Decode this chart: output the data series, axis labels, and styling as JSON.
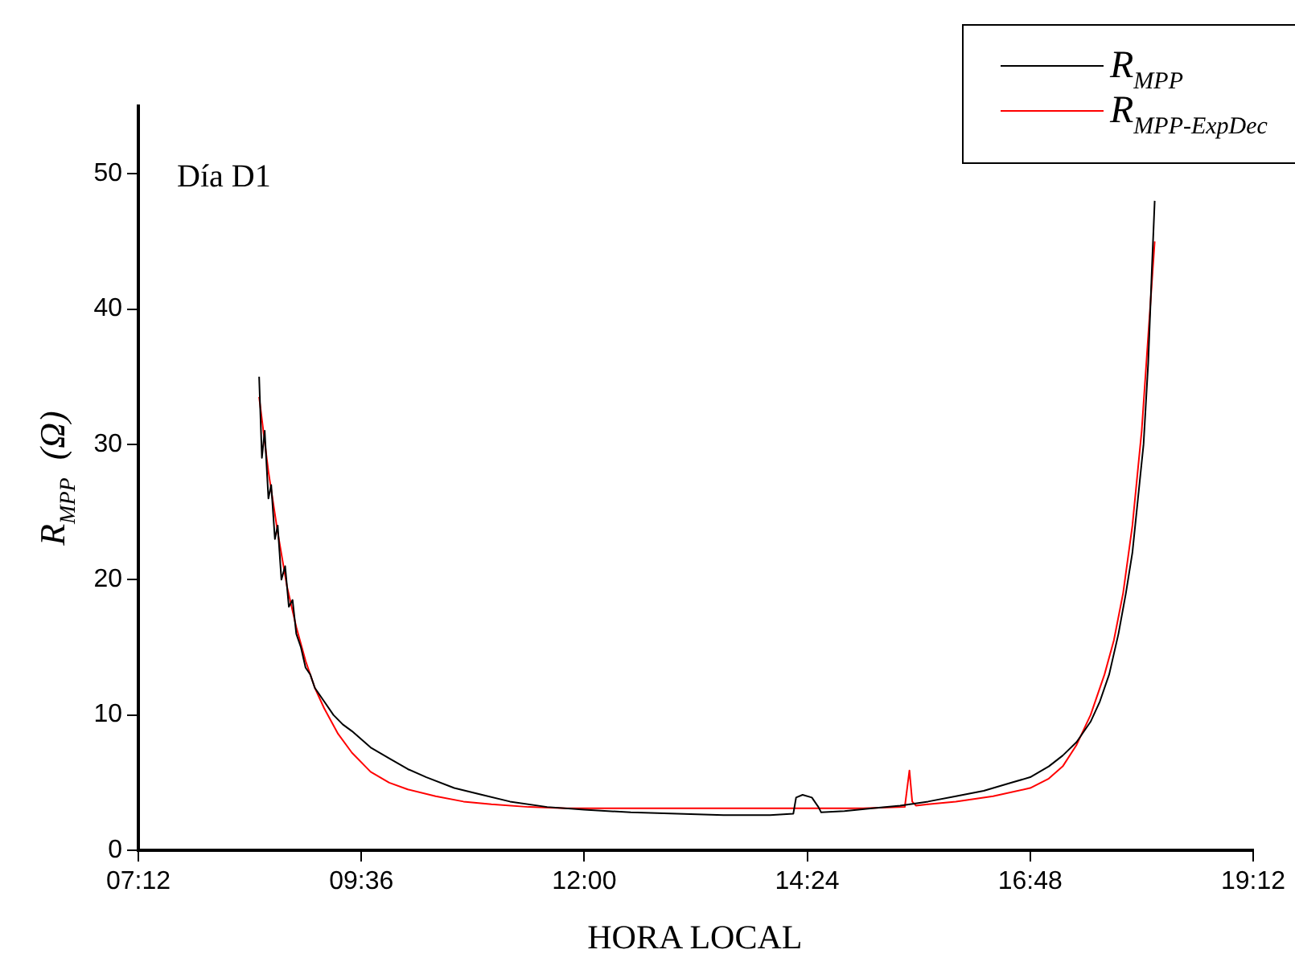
{
  "chart_data": {
    "type": "line",
    "xlabel": "HORA LOCAL",
    "ylabel": "R$_{MPP}$  (Ω)",
    "annotations": [
      "Día D1"
    ],
    "xlim": [
      7.2,
      19.2
    ],
    "xticks": [
      {
        "value": 7.2,
        "label": "07:12"
      },
      {
        "value": 9.6,
        "label": "09:36"
      },
      {
        "value": 12,
        "label": "12:00"
      },
      {
        "value": 14.4,
        "label": "14:24"
      },
      {
        "value": 16.8,
        "label": "16:48"
      },
      {
        "value": 19.2,
        "label": "19:12"
      }
    ],
    "ylim": [
      0,
      55
    ],
    "yticks": [
      0,
      10,
      20,
      30,
      40,
      50
    ],
    "grid": false,
    "legend": "top right",
    "marker": "none",
    "line_style": "solid",
    "series": [
      {
        "name": "R$_{MPP}$",
        "color": "#000000",
        "x": [
          8.5,
          8.53,
          8.56,
          8.6,
          8.63,
          8.67,
          8.7,
          8.74,
          8.78,
          8.82,
          8.86,
          8.9,
          8.95,
          9.0,
          9.05,
          9.1,
          9.2,
          9.3,
          9.4,
          9.5,
          9.7,
          9.9,
          10.1,
          10.3,
          10.6,
          10.9,
          11.2,
          11.6,
          12.0,
          12.5,
          13.0,
          13.5,
          14.0,
          14.25,
          14.28,
          14.35,
          14.45,
          14.52,
          14.55,
          14.8,
          15.1,
          15.4,
          15.7,
          16.0,
          16.3,
          16.6,
          16.8,
          17.0,
          17.15,
          17.3,
          17.45,
          17.55,
          17.65,
          17.75,
          17.83,
          17.9,
          17.96,
          18.02,
          18.07,
          18.11,
          18.14
        ],
        "values": [
          35,
          29,
          31,
          26,
          27,
          23,
          24,
          20,
          21,
          18,
          18.5,
          16,
          15,
          13.5,
          13,
          12,
          11,
          10,
          9.3,
          8.8,
          7.6,
          6.8,
          6,
          5.4,
          4.6,
          4.1,
          3.6,
          3.2,
          3,
          2.8,
          2.7,
          2.6,
          2.6,
          2.7,
          3.9,
          4.1,
          3.9,
          3.2,
          2.8,
          2.9,
          3.1,
          3.3,
          3.6,
          4,
          4.4,
          5,
          5.4,
          6.2,
          7,
          8,
          9.5,
          11,
          13,
          16,
          19,
          22,
          26,
          30,
          36,
          43,
          48
        ]
      },
      {
        "name": "R$_{MPP-ExpDec}$",
        "color": "#ff0000",
        "x": [
          8.5,
          8.6,
          8.7,
          8.8,
          8.9,
          9.0,
          9.1,
          9.2,
          9.35,
          9.5,
          9.7,
          9.9,
          10.1,
          10.4,
          10.7,
          11.0,
          11.4,
          11.8,
          12.2,
          13.0,
          14.0,
          15.0,
          15.45,
          15.5,
          15.53,
          15.57,
          15.7,
          16.0,
          16.4,
          16.8,
          17.0,
          17.15,
          17.3,
          17.45,
          17.6,
          17.7,
          17.8,
          17.9,
          18.0,
          18.07,
          18.14
        ],
        "values": [
          33.5,
          28,
          23.5,
          19.5,
          16.5,
          14,
          12,
          10.5,
          8.6,
          7.2,
          5.8,
          5,
          4.5,
          4,
          3.6,
          3.4,
          3.2,
          3.1,
          3.1,
          3.1,
          3.1,
          3.1,
          3.2,
          5.9,
          3.6,
          3.3,
          3.4,
          3.6,
          4,
          4.6,
          5.3,
          6.2,
          7.8,
          10,
          13,
          15.5,
          19,
          24,
          31,
          38,
          45
        ]
      }
    ]
  }
}
